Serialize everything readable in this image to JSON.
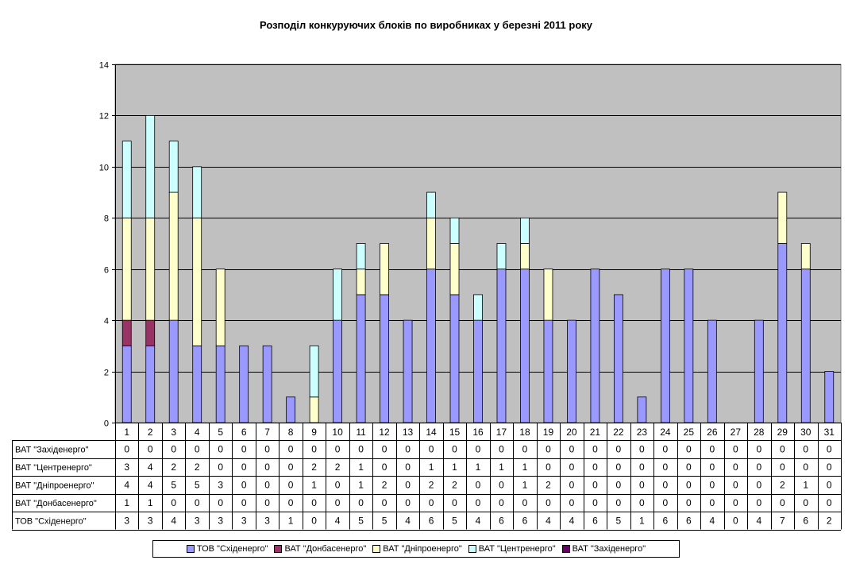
{
  "chart_data": {
    "type": "bar",
    "stacked": true,
    "title": "Розподіл конкуруючих блоків по виробниках у березні 2011 року",
    "xlabel": "",
    "ylabel": "",
    "ylim": [
      0,
      14
    ],
    "yticks": [
      0,
      2,
      4,
      6,
      8,
      10,
      12,
      14
    ],
    "grid": true,
    "legend_position": "bottom",
    "data_table": true,
    "categories": [
      "1",
      "2",
      "3",
      "4",
      "5",
      "6",
      "7",
      "8",
      "9",
      "10",
      "11",
      "12",
      "13",
      "14",
      "15",
      "16",
      "17",
      "18",
      "19",
      "20",
      "21",
      "22",
      "23",
      "24",
      "25",
      "26",
      "27",
      "28",
      "29",
      "30",
      "31"
    ],
    "series": [
      {
        "name": "ТОВ \"Східенерго\"",
        "color": "#9999ff",
        "values": [
          3,
          3,
          4,
          3,
          3,
          3,
          3,
          1,
          0,
          4,
          5,
          5,
          4,
          6,
          5,
          4,
          6,
          6,
          4,
          4,
          6,
          5,
          1,
          6,
          6,
          4,
          0,
          4,
          7,
          6,
          2
        ]
      },
      {
        "name": "ВАТ \"Донбасенерго\"",
        "color": "#993366",
        "values": [
          1,
          1,
          0,
          0,
          0,
          0,
          0,
          0,
          0,
          0,
          0,
          0,
          0,
          0,
          0,
          0,
          0,
          0,
          0,
          0,
          0,
          0,
          0,
          0,
          0,
          0,
          0,
          0,
          0,
          0,
          0
        ]
      },
      {
        "name": "ВАТ \"Дніпроенерго\"",
        "color": "#ffffcc",
        "values": [
          4,
          4,
          5,
          5,
          3,
          0,
          0,
          0,
          1,
          0,
          1,
          2,
          0,
          2,
          2,
          0,
          0,
          1,
          2,
          0,
          0,
          0,
          0,
          0,
          0,
          0,
          0,
          0,
          2,
          1,
          0
        ]
      },
      {
        "name": "ВАТ \"Центренерго\"",
        "color": "#ccffff",
        "values": [
          3,
          4,
          2,
          2,
          0,
          0,
          0,
          0,
          2,
          2,
          1,
          0,
          0,
          1,
          1,
          1,
          1,
          1,
          0,
          0,
          0,
          0,
          0,
          0,
          0,
          0,
          0,
          0,
          0,
          0,
          0
        ]
      },
      {
        "name": "ВАТ \"Західенерго\"",
        "color": "#660066",
        "values": [
          0,
          0,
          0,
          0,
          0,
          0,
          0,
          0,
          0,
          0,
          0,
          0,
          0,
          0,
          0,
          0,
          0,
          0,
          0,
          0,
          0,
          0,
          0,
          0,
          0,
          0,
          0,
          0,
          0,
          0,
          0
        ]
      }
    ]
  }
}
